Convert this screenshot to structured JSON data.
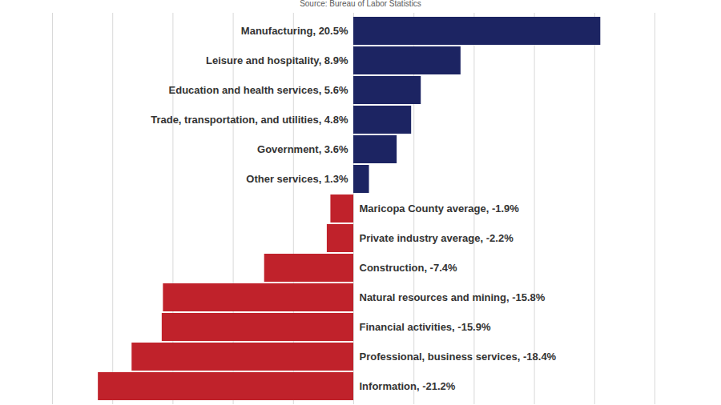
{
  "chart_data": {
    "type": "bar",
    "orientation": "horizontal",
    "subtitle": "Source: Bureau of Labor Statistics",
    "categories": [
      "Manufacturing, 20.5%",
      "Leisure and hospitality, 8.9%",
      "Education and health services, 5.6%",
      "Trade, transportation, and utilities, 4.8%",
      "Government, 3.6%",
      "Other services, 1.3%",
      "Maricopa County average, -1.9%",
      "Private industry average, -2.2%",
      "Construction, -7.4%",
      "Natural resources and mining, -15.8%",
      "Financial activities, -15.9%",
      "Professional, business services, -18.4%",
      "Information, -21.2%"
    ],
    "values": [
      20.5,
      8.9,
      5.6,
      4.8,
      3.6,
      1.3,
      -1.9,
      -2.2,
      -7.4,
      -15.8,
      -15.9,
      -18.4,
      -21.2
    ],
    "colors": [
      "#1c2462",
      "#1c2462",
      "#1c2462",
      "#1c2462",
      "#1c2462",
      "#1c2462",
      "#c0222b",
      "#c0222b",
      "#c0222b",
      "#c0222b",
      "#c0222b",
      "#c0222b",
      "#c0222b"
    ],
    "xlim": [
      -25,
      25
    ],
    "xticks": [
      -25,
      -20,
      -15,
      -10,
      -5,
      0,
      5,
      10,
      15,
      20,
      25
    ],
    "grid": true,
    "tick_labels": "y"
  }
}
